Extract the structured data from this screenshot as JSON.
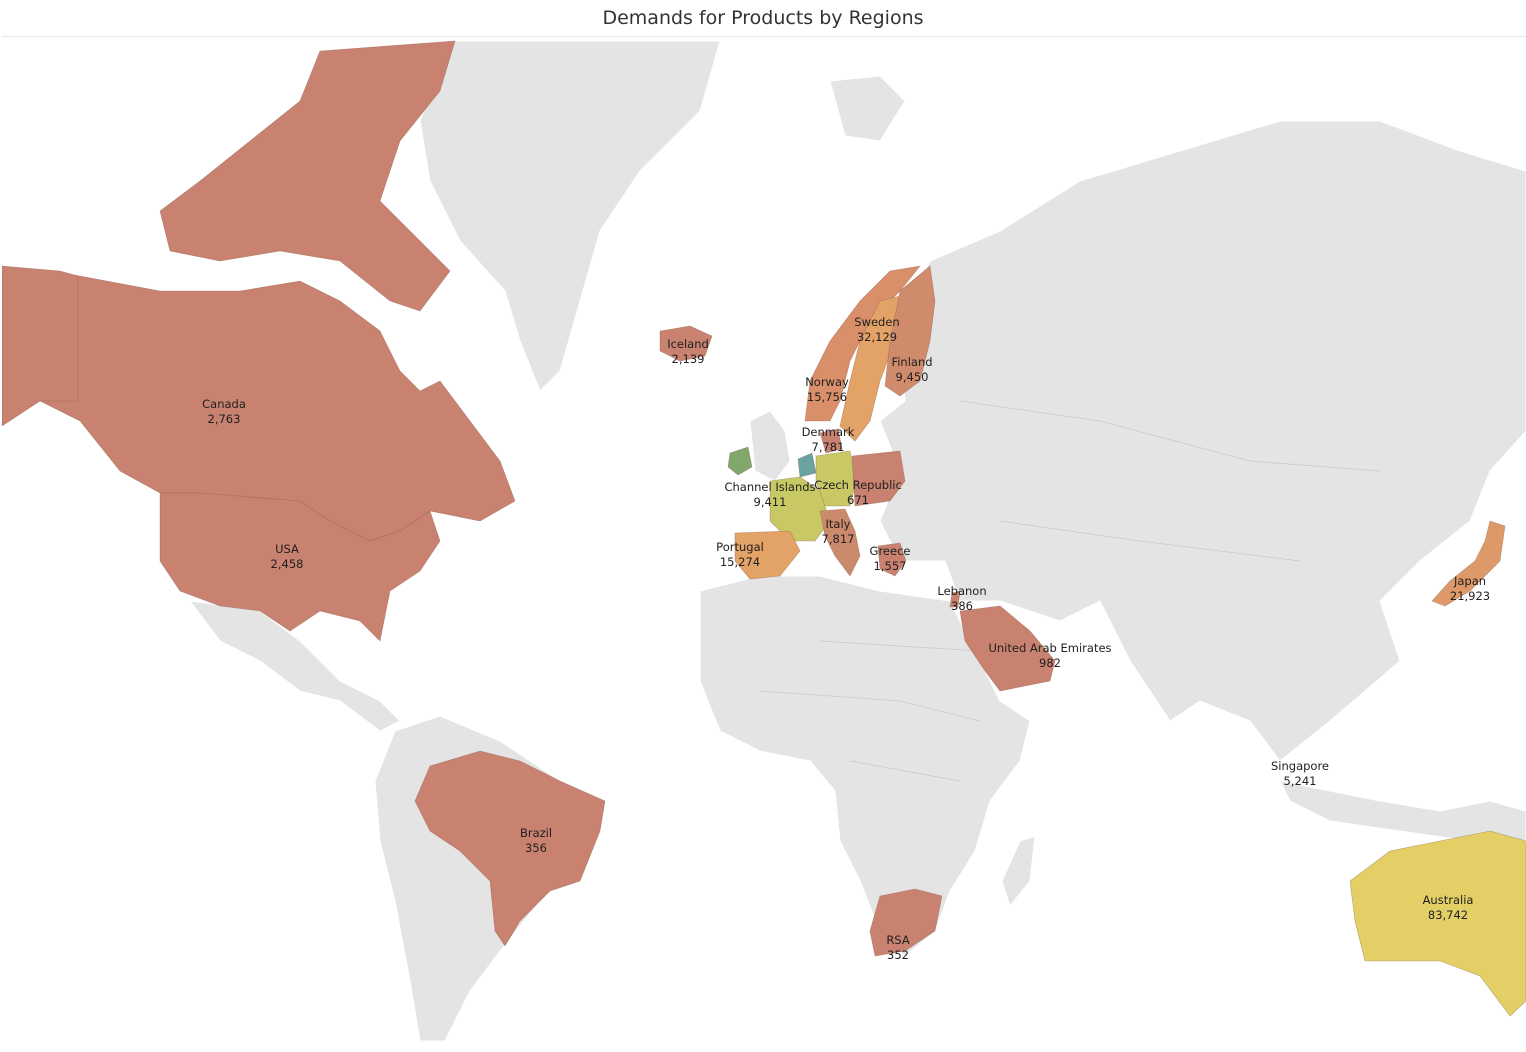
{
  "title": "Demands for Products by Regions",
  "colors": {
    "ocean": "#ffffff",
    "land": "#e4e4e4",
    "low": "#c98270",
    "mid": "#e3a266",
    "high": "#c8c864",
    "top": "#e3cf66",
    "teal": "#6aa3a0",
    "green": "#7fa86a"
  },
  "regions": [
    {
      "key": "canada",
      "name": "Canada",
      "value": "2,763",
      "color": "#c98270"
    },
    {
      "key": "usa",
      "name": "USA",
      "value": "2,458",
      "color": "#c98270"
    },
    {
      "key": "brazil",
      "name": "Brazil",
      "value": "356",
      "color": "#c98270"
    },
    {
      "key": "iceland",
      "name": "Iceland",
      "value": "2,139",
      "color": "#c98270"
    },
    {
      "key": "norway",
      "name": "Norway",
      "value": "15,756",
      "color": "#d98f69"
    },
    {
      "key": "sweden",
      "name": "Sweden",
      "value": "32,129",
      "color": "#e3a266"
    },
    {
      "key": "finland",
      "name": "Finland",
      "value": "9,450",
      "color": "#d08b6c"
    },
    {
      "key": "denmark",
      "name": "Denmark",
      "value": "7,781",
      "color": "#c98270"
    },
    {
      "key": "channel",
      "name": "Channel Islands",
      "value": "9,411",
      "color": "#c8c864"
    },
    {
      "key": "czech",
      "name": "Czech Republic",
      "value": "671",
      "color": "#c98270"
    },
    {
      "key": "italy",
      "name": "Italy",
      "value": "7,817",
      "color": "#cc8a6c"
    },
    {
      "key": "portugal",
      "name": "Portugal",
      "value": "15,274",
      "color": "#e3a266"
    },
    {
      "key": "greece",
      "name": "Greece",
      "value": "1,557",
      "color": "#c98270"
    },
    {
      "key": "lebanon",
      "name": "Lebanon",
      "value": "386",
      "color": "#c98270"
    },
    {
      "key": "uae",
      "name": "United Arab Emirates",
      "value": "982",
      "color": "#c98270"
    },
    {
      "key": "rsa",
      "name": "RSA",
      "value": "352",
      "color": "#c98270"
    },
    {
      "key": "singapore",
      "name": "Singapore",
      "value": "5,241",
      "color": "#c98270"
    },
    {
      "key": "japan",
      "name": "Japan",
      "value": "21,923",
      "color": "#dd9a68"
    },
    {
      "key": "australia",
      "name": "Australia",
      "value": "83,742",
      "color": "#e3cf66"
    }
  ]
}
